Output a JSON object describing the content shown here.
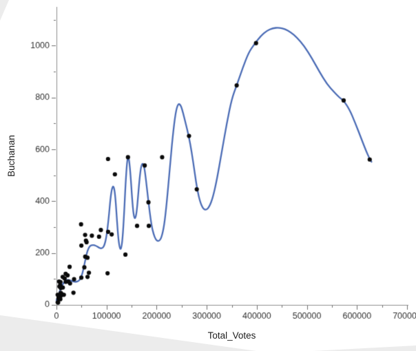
{
  "chart_data": {
    "type": "scatter",
    "title": "",
    "xlabel": "Total_Votes",
    "ylabel": "Buchanan",
    "xlim": [
      0,
      700000
    ],
    "ylim": [
      0,
      1150
    ],
    "grid": false,
    "legend": "none",
    "x_ticks": [
      0,
      100000,
      200000,
      300000,
      400000,
      500000,
      600000,
      700000
    ],
    "x_tick_labels": [
      "0",
      "100000",
      "200000",
      "300000",
      "400000",
      "500000",
      "600000",
      "700000"
    ],
    "y_ticks": [
      0,
      200,
      400,
      600,
      800,
      1000
    ],
    "y_tick_labels": [
      "0",
      "200",
      "400",
      "600",
      "800",
      "1000"
    ],
    "x_minor_step": 50000,
    "y_minor_step": 100,
    "point_color": "#0a0a0a",
    "point_radius": 3.1,
    "curve_color": "#4a6bb5",
    "curve_width": 2.3,
    "axis_color": "#8c8c8c",
    "tick_color": "#6e6e6e",
    "tick_label_color": "#323232",
    "points": [
      [
        84966,
        263
      ],
      [
        8128,
        73
      ],
      [
        58805,
        248
      ],
      [
        8673,
        65
      ],
      [
        211000,
        570
      ],
      [
        573396,
        789
      ],
      [
        5174,
        90
      ],
      [
        61900,
        182
      ],
      [
        57204,
        270
      ],
      [
        57353,
        186
      ],
      [
        102018,
        122
      ],
      [
        18508,
        89
      ],
      [
        625449,
        561
      ],
      [
        8844,
        36
      ],
      [
        4666,
        29
      ],
      [
        264636,
        652
      ],
      [
        116648,
        504
      ],
      [
        27111,
        83
      ],
      [
        4644,
        33
      ],
      [
        14727,
        39
      ],
      [
        5395,
        29
      ],
      [
        3365,
        9
      ],
      [
        5907,
        71
      ],
      [
        3964,
        24
      ],
      [
        6233,
        30
      ],
      [
        7736,
        22
      ],
      [
        60101,
        242
      ],
      [
        35149,
        99
      ],
      [
        359838,
        847
      ],
      [
        7395,
        76
      ],
      [
        49622,
        105
      ],
      [
        16300,
        102
      ],
      [
        5643,
        29
      ],
      [
        2410,
        10
      ],
      [
        88611,
        289
      ],
      [
        184377,
        305
      ],
      [
        103124,
        282
      ],
      [
        12724,
        67
      ],
      [
        2410,
        39
      ],
      [
        7043,
        29
      ],
      [
        110221,
        272
      ],
      [
        102956,
        563
      ],
      [
        62013,
        108
      ],
      [
        33887,
        47
      ],
      [
        23780,
        90
      ],
      [
        70680,
        267
      ],
      [
        9853,
        43
      ],
      [
        280125,
        446
      ],
      [
        55658,
        145
      ],
      [
        142731,
        570
      ],
      [
        398472,
        1010
      ],
      [
        176170,
        538
      ],
      [
        26222,
        147
      ],
      [
        49701,
        229
      ],
      [
        64741,
        124
      ],
      [
        49093,
        311
      ],
      [
        160942,
        305
      ],
      [
        137634,
        194
      ],
      [
        22261,
        114
      ],
      [
        12457,
        108
      ],
      [
        6808,
        27
      ],
      [
        3826,
        37
      ],
      [
        183653,
        396
      ],
      [
        8587,
        46
      ],
      [
        18318,
        120
      ],
      [
        8025,
        88
      ]
    ],
    "fit_curve": {
      "name": "flexible-smoothing-spline-fit",
      "points": [
        [
          0,
          18
        ],
        [
          4000,
          40
        ],
        [
          8000,
          60
        ],
        [
          12000,
          78
        ],
        [
          16000,
          90
        ],
        [
          20000,
          96
        ],
        [
          24000,
          97
        ],
        [
          28000,
          94
        ],
        [
          32000,
          91
        ],
        [
          36000,
          89
        ],
        [
          40000,
          89
        ],
        [
          44000,
          92
        ],
        [
          48000,
          101
        ],
        [
          52000,
          122
        ],
        [
          56000,
          158
        ],
        [
          60000,
          196
        ],
        [
          64000,
          220
        ],
        [
          68000,
          229
        ],
        [
          72000,
          231
        ],
        [
          76000,
          230
        ],
        [
          80000,
          227
        ],
        [
          84000,
          222
        ],
        [
          88000,
          218
        ],
        [
          92000,
          219
        ],
        [
          96000,
          231
        ],
        [
          100000,
          265
        ],
        [
          104000,
          330
        ],
        [
          108000,
          415
        ],
        [
          111000,
          452
        ],
        [
          114000,
          460
        ],
        [
          117000,
          430
        ],
        [
          120000,
          350
        ],
        [
          123000,
          265
        ],
        [
          126000,
          220
        ],
        [
          129000,
          213
        ],
        [
          132000,
          255
        ],
        [
          135000,
          350
        ],
        [
          138000,
          470
        ],
        [
          141000,
          555
        ],
        [
          143000,
          570
        ],
        [
          145000,
          562
        ],
        [
          148000,
          500
        ],
        [
          151000,
          410
        ],
        [
          154000,
          345
        ],
        [
          157000,
          330
        ],
        [
          160000,
          355
        ],
        [
          163000,
          420
        ],
        [
          166000,
          490
        ],
        [
          169000,
          535
        ],
        [
          172000,
          548
        ],
        [
          175000,
          535
        ],
        [
          178000,
          495
        ],
        [
          182000,
          425
        ],
        [
          186000,
          360
        ],
        [
          190000,
          305
        ],
        [
          194000,
          272
        ],
        [
          198000,
          253
        ],
        [
          202000,
          246
        ],
        [
          206000,
          248
        ],
        [
          210000,
          262
        ],
        [
          215000,
          305
        ],
        [
          220000,
          390
        ],
        [
          226000,
          520
        ],
        [
          232000,
          650
        ],
        [
          238000,
          745
        ],
        [
          243000,
          777
        ],
        [
          248000,
          772
        ],
        [
          253000,
          740
        ],
        [
          258000,
          700
        ],
        [
          264000,
          653
        ],
        [
          270000,
          590
        ],
        [
          276000,
          510
        ],
        [
          281000,
          445
        ],
        [
          287000,
          396
        ],
        [
          293000,
          370
        ],
        [
          299000,
          366
        ],
        [
          305000,
          378
        ],
        [
          312000,
          412
        ],
        [
          320000,
          480
        ],
        [
          330000,
          590
        ],
        [
          340000,
          700
        ],
        [
          350000,
          795
        ],
        [
          360000,
          848
        ],
        [
          372000,
          915
        ],
        [
          384000,
          975
        ],
        [
          396000,
          1008
        ],
        [
          408000,
          1038
        ],
        [
          420000,
          1058
        ],
        [
          432000,
          1068
        ],
        [
          444000,
          1070
        ],
        [
          456000,
          1065
        ],
        [
          468000,
          1052
        ],
        [
          480000,
          1032
        ],
        [
          495000,
          998
        ],
        [
          510000,
          952
        ],
        [
          525000,
          900
        ],
        [
          540000,
          852
        ],
        [
          555000,
          820
        ],
        [
          565000,
          800
        ],
        [
          573000,
          789
        ],
        [
          585000,
          755
        ],
        [
          597000,
          700
        ],
        [
          609000,
          640
        ],
        [
          618000,
          595
        ],
        [
          625000,
          565
        ],
        [
          629000,
          552
        ]
      ]
    }
  }
}
